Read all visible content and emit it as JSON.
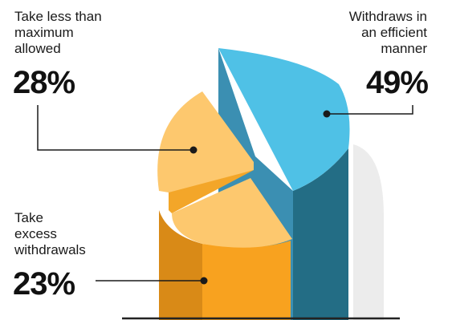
{
  "chart_data": {
    "type": "pie",
    "title": "",
    "slices": [
      {
        "label": "Take less than maximum allowed",
        "value": 28,
        "display": "28%",
        "color": "#fdc86e"
      },
      {
        "label": "Withdraws in an efficient manner",
        "value": 49,
        "display": "49%",
        "color": "#4fc1e6"
      },
      {
        "label": "Take excess withdrawals",
        "value": 23,
        "display": "23%",
        "color": "#f8a21f"
      }
    ]
  },
  "labels": {
    "less": "Take less than\nmaximum\nallowed",
    "efficient": "Withdraws in\nan efficient\nmanner",
    "excess": "Take\nexcess\nwithdrawals"
  }
}
